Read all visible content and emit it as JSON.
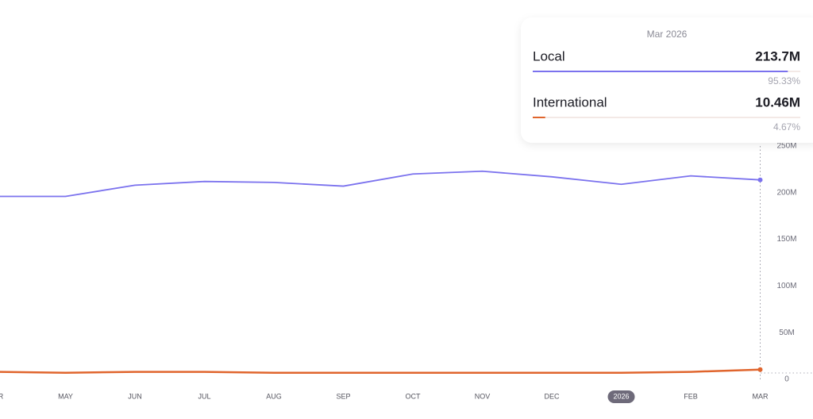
{
  "chart_data": {
    "type": "line",
    "categories": [
      "APR",
      "MAY",
      "JUN",
      "JUL",
      "AUG",
      "SEP",
      "OCT",
      "NOV",
      "DEC",
      "2026",
      "FEB",
      "MAR"
    ],
    "series": [
      {
        "name": "Local",
        "color": "#7b72ee",
        "values": [
          196,
          196,
          208,
          212,
          211,
          207,
          220,
          223,
          217,
          209,
          218,
          213.7
        ]
      },
      {
        "name": "International",
        "color": "#e0652d",
        "values": [
          8,
          7,
          8,
          8,
          7,
          7,
          7,
          7,
          7,
          7,
          8,
          10.46
        ]
      }
    ],
    "ylim": [
      0,
      250
    ],
    "yticks": [
      0,
      {
        "value": 50,
        "label": "50M"
      },
      {
        "value": 100,
        "label": "100M"
      },
      {
        "value": 150,
        "label": "150M"
      },
      {
        "value": 200,
        "label": "200M"
      },
      {
        "value": 250,
        "label": "250M"
      }
    ],
    "tooltip": {
      "title": "Mar 2026",
      "values": [
        "213.7M",
        "10.46M"
      ],
      "shares": [
        {
          "value": 95.33,
          "label": "95.33%"
        },
        {
          "value": 4.67,
          "label": "4.67%"
        }
      ]
    }
  }
}
